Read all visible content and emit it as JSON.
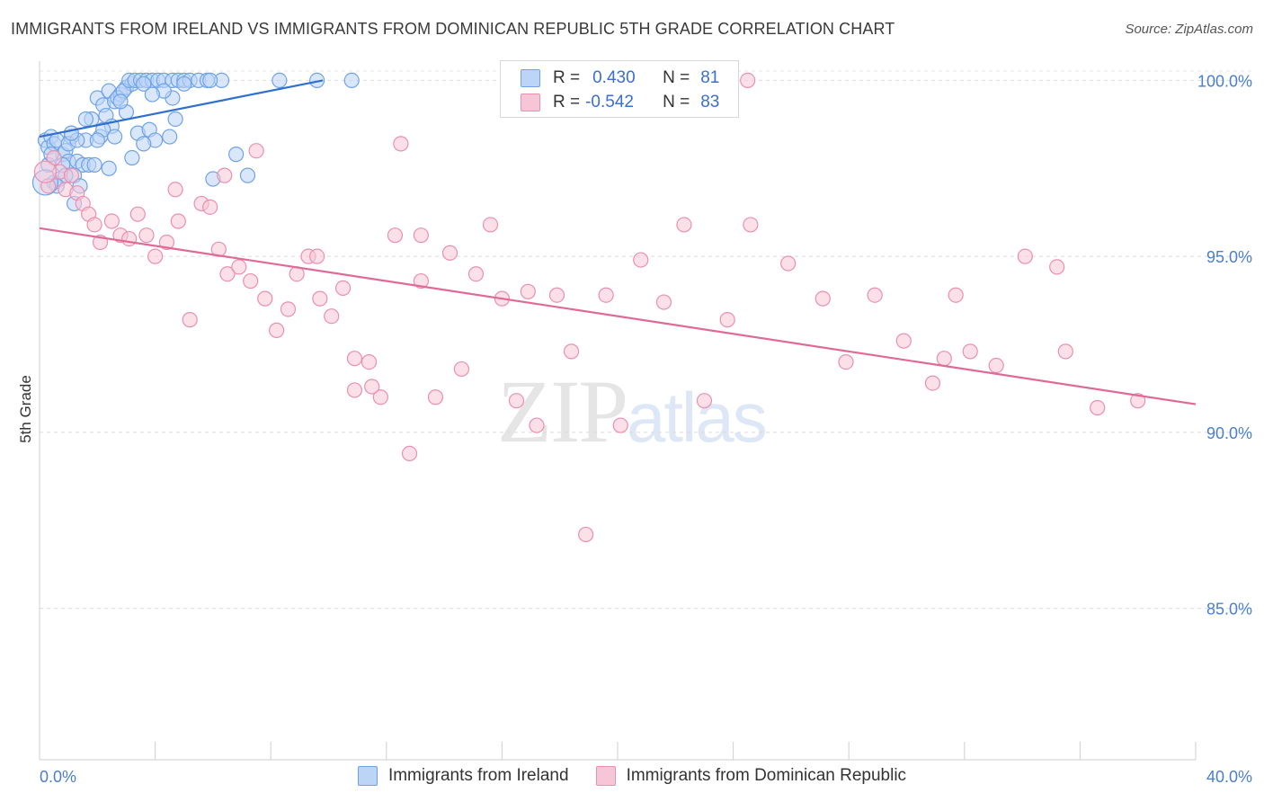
{
  "title": "IMMIGRANTS FROM IRELAND VS IMMIGRANTS FROM DOMINICAN REPUBLIC 5TH GRADE CORRELATION CHART",
  "source": "Source: ZipAtlas.com",
  "watermark": {
    "zip": "ZIP",
    "atlas": "atlas"
  },
  "legend": {
    "rows": [
      {
        "r_label": "R =",
        "r_value": "0.430",
        "n_label": "N =",
        "n_value": "81"
      },
      {
        "r_label": "R =",
        "r_value": "-0.542",
        "n_label": "N =",
        "n_value": "83"
      }
    ]
  },
  "chart_data": {
    "type": "scatter",
    "title": "IMMIGRANTS FROM IRELAND VS IMMIGRANTS FROM DOMINICAN REPUBLIC 5TH GRADE CORRELATION CHART",
    "xlabel": "",
    "ylabel": "5th Grade",
    "xlim": [
      0,
      40
    ],
    "ylim": [
      80.7,
      100.7
    ],
    "x_tick_labels": [
      "0.0%",
      "40.0%"
    ],
    "y_ticks": [
      85,
      90,
      95,
      100
    ],
    "y_tick_labels": [
      "85.0%",
      "90.0%",
      "95.0%",
      "100.0%"
    ],
    "grid": true,
    "legend_position": "top-center",
    "series": [
      {
        "name": "Immigrants from Ireland",
        "color": "#6fa3e8",
        "fill": "#bcd4f5",
        "trend": {
          "x": [
            0,
            9.8
          ],
          "y": [
            98.4,
            100.0
          ]
        },
        "points": [
          [
            0.2,
            98.3
          ],
          [
            0.3,
            98.1
          ],
          [
            0.4,
            98.4
          ],
          [
            0.5,
            98.2
          ],
          [
            0.6,
            98.3
          ],
          [
            0.8,
            97.9
          ],
          [
            0.9,
            98.0
          ],
          [
            1.0,
            97.7
          ],
          [
            1.1,
            98.4
          ],
          [
            1.3,
            97.7
          ],
          [
            1.5,
            97.6
          ],
          [
            1.6,
            98.3
          ],
          [
            1.8,
            98.9
          ],
          [
            2.0,
            99.5
          ],
          [
            2.2,
            99.3
          ],
          [
            2.4,
            99.7
          ],
          [
            2.6,
            99.4
          ],
          [
            2.8,
            99.6
          ],
          [
            3.0,
            99.8
          ],
          [
            3.2,
            99.9
          ],
          [
            2.1,
            98.4
          ],
          [
            2.3,
            99.0
          ],
          [
            2.5,
            98.7
          ],
          [
            2.7,
            99.5
          ],
          [
            2.9,
            99.7
          ],
          [
            3.1,
            100.0
          ],
          [
            3.3,
            100.0
          ],
          [
            3.5,
            100.0
          ],
          [
            3.7,
            100.0
          ],
          [
            3.9,
            100.0
          ],
          [
            4.1,
            100.0
          ],
          [
            4.3,
            100.0
          ],
          [
            4.6,
            100.0
          ],
          [
            4.8,
            100.0
          ],
          [
            5.0,
            100.0
          ],
          [
            5.2,
            100.0
          ],
          [
            0.5,
            97.1
          ],
          [
            0.8,
            97.6
          ],
          [
            1.2,
            97.3
          ],
          [
            1.4,
            97.0
          ],
          [
            1.7,
            97.6
          ],
          [
            1.9,
            97.6
          ],
          [
            2.2,
            98.6
          ],
          [
            2.6,
            98.4
          ],
          [
            3.0,
            99.1
          ],
          [
            3.4,
            98.5
          ],
          [
            3.8,
            98.6
          ],
          [
            4.0,
            98.3
          ],
          [
            4.5,
            98.4
          ],
          [
            0.3,
            97.6
          ],
          [
            1.2,
            96.5
          ],
          [
            2.4,
            97.5
          ],
          [
            3.2,
            97.8
          ],
          [
            3.6,
            98.2
          ],
          [
            4.6,
            99.5
          ],
          [
            5.0,
            99.9
          ],
          [
            5.5,
            100.0
          ],
          [
            4.3,
            99.7
          ],
          [
            6.0,
            97.2
          ],
          [
            6.8,
            97.9
          ],
          [
            7.2,
            97.3
          ],
          [
            6.3,
            100.0
          ],
          [
            8.3,
            100.0
          ],
          [
            9.6,
            100.0
          ],
          [
            10.8,
            100.0
          ],
          [
            18.4,
            100.0
          ],
          [
            1.0,
            98.2
          ],
          [
            1.6,
            98.9
          ],
          [
            2.8,
            99.4
          ],
          [
            3.6,
            99.9
          ],
          [
            0.7,
            97.2
          ],
          [
            1.3,
            98.3
          ],
          [
            0.4,
            97.9
          ],
          [
            0.9,
            97.3
          ],
          [
            5.8,
            100.0
          ],
          [
            5.9,
            100.0
          ],
          [
            4.7,
            98.9
          ],
          [
            3.9,
            99.6
          ],
          [
            2.0,
            98.3
          ],
          [
            1.1,
            98.5
          ],
          [
            0.6,
            97.0
          ]
        ]
      },
      {
        "name": "Immigrants from Dominican Republic",
        "color": "#ec8fb0",
        "fill": "#f7c6d6",
        "trend": {
          "x": [
            0,
            40
          ],
          "y": [
            95.8,
            90.8
          ]
        },
        "points": [
          [
            0.3,
            97.0
          ],
          [
            0.5,
            97.8
          ],
          [
            0.7,
            97.4
          ],
          [
            0.9,
            96.9
          ],
          [
            1.1,
            97.3
          ],
          [
            1.3,
            96.8
          ],
          [
            1.5,
            96.5
          ],
          [
            1.7,
            96.2
          ],
          [
            1.9,
            95.9
          ],
          [
            2.1,
            95.4
          ],
          [
            2.5,
            96.0
          ],
          [
            2.8,
            95.6
          ],
          [
            3.1,
            95.5
          ],
          [
            3.4,
            96.2
          ],
          [
            3.7,
            95.6
          ],
          [
            4.0,
            95.0
          ],
          [
            4.4,
            95.4
          ],
          [
            4.8,
            96.0
          ],
          [
            5.2,
            93.2
          ],
          [
            5.6,
            96.5
          ],
          [
            5.9,
            96.4
          ],
          [
            6.2,
            95.2
          ],
          [
            6.5,
            94.5
          ],
          [
            6.9,
            94.7
          ],
          [
            7.3,
            94.3
          ],
          [
            7.8,
            93.8
          ],
          [
            8.2,
            92.9
          ],
          [
            8.6,
            93.5
          ],
          [
            8.9,
            94.5
          ],
          [
            9.3,
            95.0
          ],
          [
            9.7,
            93.8
          ],
          [
            10.1,
            93.3
          ],
          [
            10.5,
            94.1
          ],
          [
            10.9,
            91.2
          ],
          [
            11.4,
            92.0
          ],
          [
            11.8,
            91.0
          ],
          [
            12.3,
            95.6
          ],
          [
            12.8,
            89.4
          ],
          [
            13.2,
            94.3
          ],
          [
            13.7,
            91.0
          ],
          [
            14.2,
            95.1
          ],
          [
            14.6,
            91.8
          ],
          [
            15.1,
            94.5
          ],
          [
            15.6,
            95.9
          ],
          [
            16.0,
            93.8
          ],
          [
            16.5,
            90.9
          ],
          [
            17.2,
            90.2
          ],
          [
            17.9,
            93.9
          ],
          [
            18.4,
            92.3
          ],
          [
            18.9,
            87.1
          ],
          [
            19.6,
            93.9
          ],
          [
            20.1,
            90.2
          ],
          [
            20.8,
            94.9
          ],
          [
            21.6,
            93.7
          ],
          [
            22.3,
            95.9
          ],
          [
            23.0,
            90.9
          ],
          [
            23.8,
            93.2
          ],
          [
            24.6,
            95.9
          ],
          [
            25.9,
            94.8
          ],
          [
            27.1,
            93.8
          ],
          [
            27.9,
            92.0
          ],
          [
            28.9,
            93.9
          ],
          [
            29.9,
            92.6
          ],
          [
            30.9,
            91.4
          ],
          [
            31.3,
            92.1
          ],
          [
            31.7,
            93.9
          ],
          [
            32.2,
            92.3
          ],
          [
            33.1,
            91.9
          ],
          [
            34.1,
            95.0
          ],
          [
            35.2,
            94.7
          ],
          [
            35.5,
            92.3
          ],
          [
            36.6,
            90.7
          ],
          [
            38.0,
            90.9
          ],
          [
            24.5,
            100.0
          ],
          [
            12.5,
            98.2
          ],
          [
            7.5,
            98.0
          ],
          [
            6.4,
            97.3
          ],
          [
            4.7,
            96.9
          ],
          [
            9.6,
            95.0
          ],
          [
            13.2,
            95.6
          ],
          [
            16.9,
            94.0
          ],
          [
            10.9,
            92.1
          ],
          [
            11.5,
            91.3
          ]
        ]
      }
    ]
  },
  "bottom_legend": [
    {
      "label": "Immigrants from Ireland"
    },
    {
      "label": "Immigrants from Dominican Republic"
    }
  ]
}
